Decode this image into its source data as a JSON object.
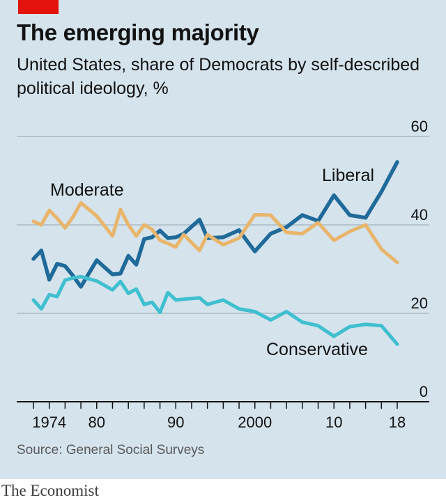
{
  "header": {
    "title": "The emerging majority",
    "subtitle": "United States, share of Democrats by self-described political ideology, %"
  },
  "footer": {
    "source": "Source: General Social Surveys",
    "brand": "The Economist"
  },
  "colors": {
    "background": "#d4e3ec",
    "accent_tag": "#e3120b",
    "liberal": "#1f6a99",
    "moderate": "#e8b56b",
    "conservative": "#3fbfcf",
    "gridline": "#a9bbc6",
    "axis": "#121212"
  },
  "chart_data": {
    "type": "line",
    "ylim": [
      0,
      60
    ],
    "xlim": [
      1972,
      2018
    ],
    "grid": true,
    "legend": "labels placed next to each line",
    "yticks": [
      {
        "value": 0,
        "label": "0"
      },
      {
        "value": 20,
        "label": "20"
      },
      {
        "value": 40,
        "label": "40"
      },
      {
        "value": 60,
        "label": "60"
      }
    ],
    "xticks": [
      {
        "value": 1974,
        "label": "1974"
      },
      {
        "value": 1980,
        "label": "80"
      },
      {
        "value": 1990,
        "label": "90"
      },
      {
        "value": 2000,
        "label": "2000"
      },
      {
        "value": 2010,
        "label": "10"
      },
      {
        "value": 2018,
        "label": "18"
      }
    ],
    "x_minor_ticks": [
      1972,
      1974,
      1976,
      1978,
      1980,
      1982,
      1984,
      1986,
      1988,
      1990,
      1992,
      1994,
      1996,
      1998,
      2000,
      2002,
      2004,
      2006,
      2008,
      2010,
      2012,
      2014,
      2016,
      2018
    ],
    "series": [
      {
        "name": "Liberal",
        "color_key": "liberal",
        "x": [
          1972,
          1973,
          1974,
          1975,
          1976,
          1977,
          1978,
          1980,
          1982,
          1983,
          1984,
          1985,
          1986,
          1987,
          1988,
          1989,
          1990,
          1991,
          1993,
          1994,
          1996,
          1998,
          2000,
          2002,
          2004,
          2006,
          2008,
          2010,
          2012,
          2014,
          2016,
          2018
        ],
        "values": [
          32.3,
          34.2,
          27.6,
          31.2,
          30.7,
          28.5,
          26.0,
          32.0,
          28.8,
          29.0,
          33.0,
          31.0,
          36.8,
          37.2,
          38.7,
          37.0,
          37.2,
          38.0,
          41.2,
          37.0,
          37.2,
          38.8,
          34.0,
          38.0,
          39.5,
          42.2,
          40.9,
          46.7,
          42.2,
          41.6,
          47.5,
          54.2
        ]
      },
      {
        "name": "Moderate",
        "color_key": "moderate",
        "x": [
          1972,
          1973,
          1974,
          1975,
          1976,
          1977,
          1978,
          1980,
          1982,
          1983,
          1984,
          1985,
          1986,
          1987,
          1988,
          1989,
          1990,
          1991,
          1993,
          1994,
          1996,
          1998,
          2000,
          2002,
          2004,
          2006,
          2008,
          2010,
          2012,
          2014,
          2016,
          2018
        ],
        "values": [
          40.8,
          40.0,
          43.3,
          41.5,
          39.3,
          41.8,
          45.0,
          42.0,
          37.5,
          43.5,
          40.0,
          37.5,
          40.0,
          39.0,
          36.5,
          35.8,
          35.0,
          37.8,
          34.2,
          37.8,
          35.5,
          37.0,
          42.3,
          42.2,
          38.3,
          38.0,
          40.5,
          36.5,
          38.5,
          40.0,
          34.5,
          31.5
        ]
      },
      {
        "name": "Conservative",
        "color_key": "conservative",
        "x": [
          1972,
          1973,
          1974,
          1975,
          1976,
          1977,
          1978,
          1980,
          1982,
          1983,
          1984,
          1985,
          1986,
          1987,
          1988,
          1989,
          1990,
          1991,
          1993,
          1994,
          1996,
          1998,
          2000,
          2002,
          2004,
          2006,
          2008,
          2010,
          2012,
          2014,
          2016,
          2018
        ],
        "values": [
          23.0,
          21.0,
          24.2,
          23.8,
          27.5,
          28.0,
          28.3,
          27.3,
          25.3,
          27.2,
          24.5,
          25.5,
          22.0,
          22.5,
          20.2,
          24.7,
          23.0,
          23.2,
          23.5,
          22.0,
          23.0,
          21.0,
          20.4,
          18.5,
          20.4,
          18.0,
          17.2,
          14.8,
          17.0,
          17.5,
          17.2,
          13.0
        ]
      }
    ]
  }
}
